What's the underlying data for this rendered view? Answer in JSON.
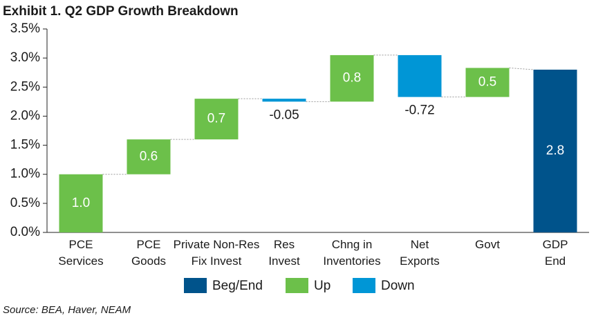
{
  "chart_data": {
    "type": "waterfall",
    "title": "Exhibit 1. Q2 GDP Growth Breakdown",
    "categories": [
      "PCE\nServices",
      "PCE\nGoods",
      "Private Non-Res\nFix Invest",
      "Res\nInvest",
      "Chng in\nInventories",
      "Net\nExports",
      "Govt",
      "GDP\nEnd"
    ],
    "values": [
      1.0,
      0.6,
      0.7,
      -0.05,
      0.8,
      -0.72,
      0.5,
      2.8
    ],
    "value_labels": [
      "1.0",
      "0.6",
      "0.7",
      "-0.05",
      "0.8",
      "-0.72",
      "0.5",
      "2.8"
    ],
    "measure": [
      "relative",
      "relative",
      "relative",
      "relative",
      "relative",
      "relative",
      "relative",
      "total"
    ],
    "colors": [
      "#6cc04a",
      "#6cc04a",
      "#6cc04a",
      "#0096d6",
      "#6cc04a",
      "#0096d6",
      "#6cc04a",
      "#00538b"
    ],
    "legend": [
      {
        "name": "Beg/End",
        "color": "#00538b"
      },
      {
        "name": "Up",
        "color": "#6cc04a"
      },
      {
        "name": "Down",
        "color": "#0096d6"
      }
    ],
    "ylim": [
      0,
      3.5
    ],
    "yticks": [
      {
        "value": 0,
        "label": "0.0%"
      },
      {
        "value": 0.5,
        "label": "0.5%"
      },
      {
        "value": 1.0,
        "label": "1.0%"
      },
      {
        "value": 1.5,
        "label": "1.5%"
      },
      {
        "value": 2.0,
        "label": "2.0%"
      },
      {
        "value": 2.5,
        "label": "2.5%"
      },
      {
        "value": 3.0,
        "label": "3.0%"
      },
      {
        "value": 3.5,
        "label": "3.5%"
      }
    ],
    "source": "Source: BEA, Haver, NEAM"
  }
}
